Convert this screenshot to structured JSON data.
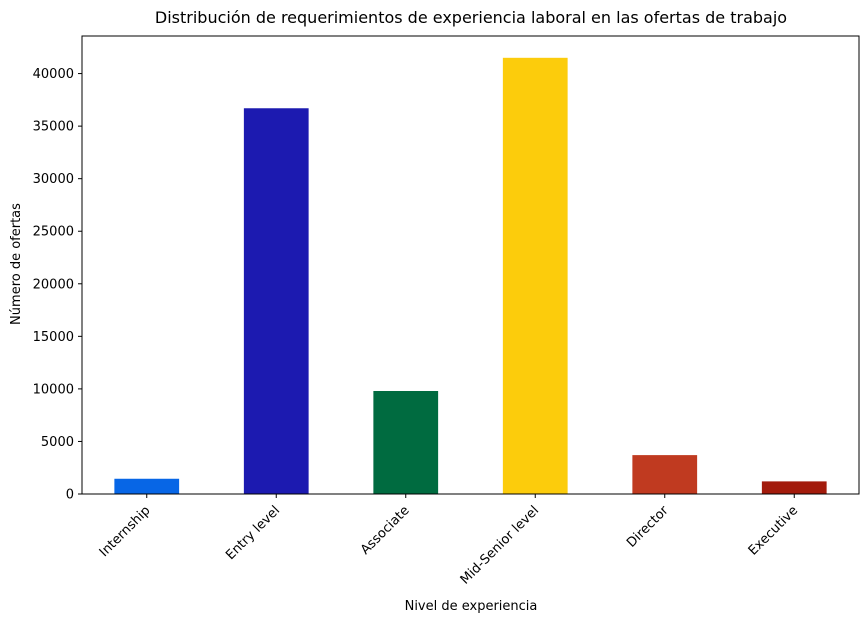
{
  "chart_data": {
    "type": "bar",
    "title": "Distribución de requerimientos de experiencia laboral en las ofertas de trabajo",
    "xlabel": "Nivel de experiencia",
    "ylabel": "Número de ofertas",
    "categories": [
      "Internship",
      "Entry level",
      "Associate",
      "Mid-Senior level",
      "Director",
      "Executive"
    ],
    "values": [
      1450,
      36700,
      9800,
      41500,
      3700,
      1200
    ],
    "colors": [
      "#0766e6",
      "#1c1ab0",
      "#006b40",
      "#fccc0c",
      "#c03a20",
      "#a31b0c"
    ],
    "yticks": [
      0,
      5000,
      10000,
      15000,
      20000,
      25000,
      30000,
      35000,
      40000
    ],
    "ylim": [
      0,
      43575
    ],
    "grid": false,
    "legend": "none"
  }
}
